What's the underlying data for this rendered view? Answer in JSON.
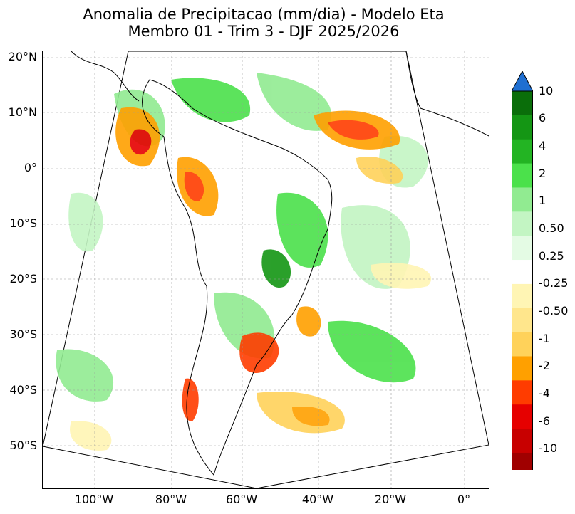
{
  "title": {
    "line1": "Anomalia de Precipitacao (mm/dia) - Modelo Eta",
    "line2": "Membro 01 - Trim 3 - DJF 2025/2026"
  },
  "map": {
    "lat_labels": [
      "20°N",
      "10°N",
      "0°",
      "10°S",
      "20°S",
      "30°S",
      "40°S",
      "50°S"
    ],
    "lon_labels": [
      "100°W",
      "80°W",
      "60°W",
      "40°W",
      "20°W",
      "0°"
    ]
  },
  "colorbar": {
    "labels": [
      "10",
      "6",
      "4",
      "2",
      "1",
      "0.50",
      "0.25",
      "-0.25",
      "-0.50",
      "-1",
      "-2",
      "-4",
      "-6",
      "-10"
    ],
    "colors": [
      "#0a6e0a",
      "#149614",
      "#23b423",
      "#4be14b",
      "#91eb91",
      "#c3f5c3",
      "#e4fbe4",
      "#ffffff",
      "#fff5b4",
      "#ffe68c",
      "#ffd25a",
      "#ffa000",
      "#ff3c00",
      "#e60000",
      "#c80000",
      "#a00000"
    ],
    "over_color": "#1f6fd1",
    "under_color": "#6e4332"
  }
}
